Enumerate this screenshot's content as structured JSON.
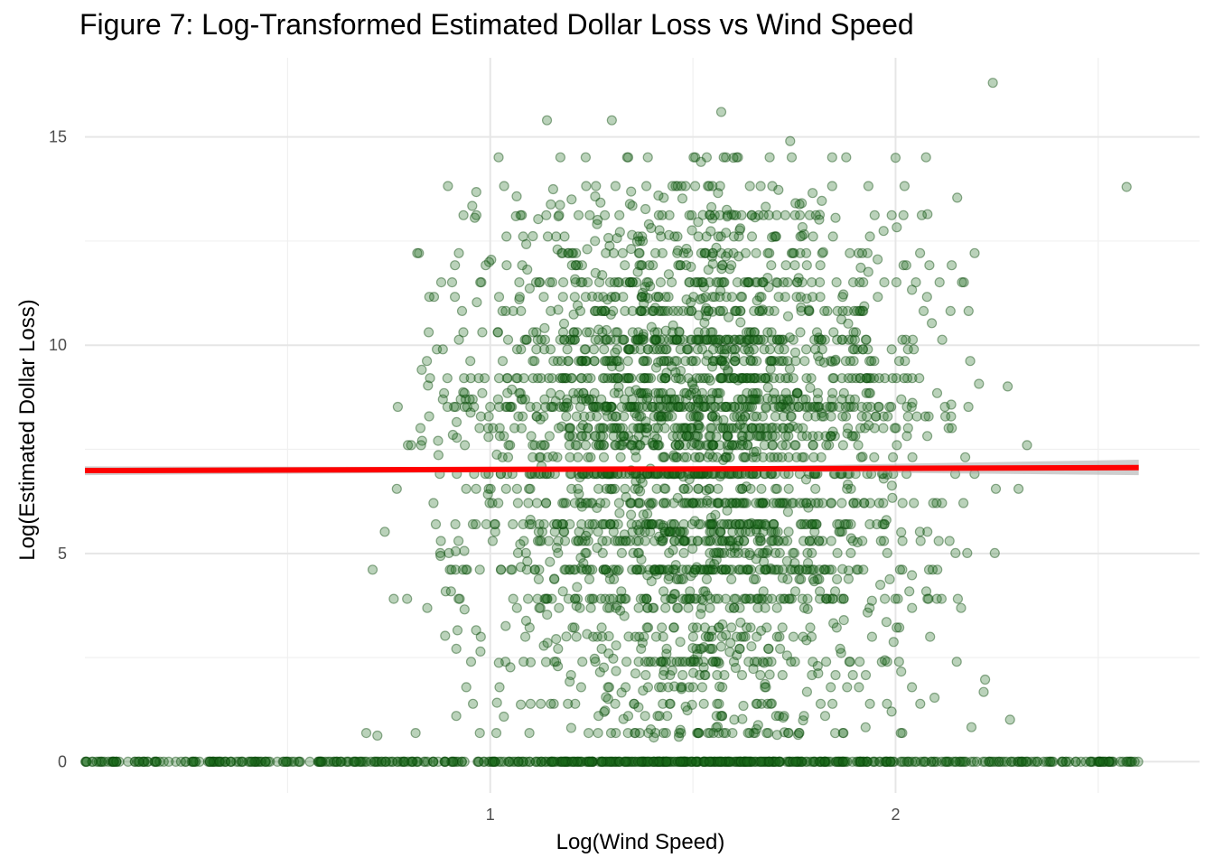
{
  "chart_data": {
    "type": "scatter",
    "title": "Figure 7: Log-Transformed Estimated Dollar Loss vs Wind Speed",
    "xlabel": "Log(Wind Speed)",
    "ylabel": "Log(Estimated Dollar Loss)",
    "xlim": [
      0.0,
      2.75
    ],
    "ylim": [
      -0.75,
      16.9
    ],
    "x_ticks": [
      1,
      2
    ],
    "x_tick_labels": [
      "1",
      "2"
    ],
    "x_minor_ticks": [
      0.5,
      1.5,
      2.5
    ],
    "y_ticks": [
      0,
      5,
      10,
      15
    ],
    "y_tick_labels": [
      "0",
      "5",
      "10",
      "15"
    ],
    "y_minor_ticks": [
      2.5,
      7.5,
      12.5
    ],
    "grid": true,
    "legend": "none",
    "point_color": "#1a6b1a",
    "point_alpha": 0.3,
    "fit_line_color": "#ff0000",
    "fit_band_color": "#a6a6a6",
    "fit_line": {
      "x": [
        0.0,
        2.6
      ],
      "y": [
        6.99,
        7.06
      ]
    },
    "fit_band": {
      "x": [
        0.0,
        1.5,
        2.6
      ],
      "upper": [
        7.09,
        7.07,
        7.25
      ],
      "lower": [
        6.88,
        6.98,
        6.88
      ]
    },
    "points": {
      "x_range": [
        0.0,
        2.6
      ],
      "x_center": 1.5,
      "y_levels": [
        0,
        0.69,
        1.1,
        1.39,
        1.79,
        2.08,
        2.4,
        2.71,
        3.0,
        3.22,
        3.69,
        3.91,
        4.09,
        4.38,
        4.61,
        5.01,
        5.3,
        5.52,
        5.7,
        6.21,
        6.55,
        6.91,
        7.31,
        7.6,
        7.82,
        8.01,
        8.29,
        8.52,
        8.7,
        8.85,
        9.21,
        9.62,
        9.9,
        10.13,
        10.31,
        10.82,
        11.16,
        11.51,
        11.92,
        12.21,
        12.61,
        13.12,
        13.82,
        14.51
      ],
      "y_level_weights": [
        10,
        2,
        1,
        1,
        1,
        1,
        2,
        1,
        2,
        1,
        1,
        4,
        1,
        1,
        5,
        2,
        4,
        2,
        4,
        5,
        2,
        7,
        3,
        4,
        3,
        4,
        3,
        6,
        3,
        2,
        6,
        4,
        3,
        5,
        2,
        4,
        2,
        4,
        1,
        2,
        1,
        2,
        1,
        1
      ],
      "scattered_range": [
        0.5,
        13.8
      ],
      "outliers": [
        [
          1.3,
          15.4
        ],
        [
          1.14,
          15.4
        ],
        [
          1.57,
          15.6
        ],
        [
          1.74,
          14.9
        ],
        [
          2.24,
          16.3
        ],
        [
          1.52,
          14.4
        ],
        [
          2.0,
          14.5
        ],
        [
          1.6,
          14.5
        ],
        [
          2.57,
          13.8
        ]
      ]
    }
  }
}
